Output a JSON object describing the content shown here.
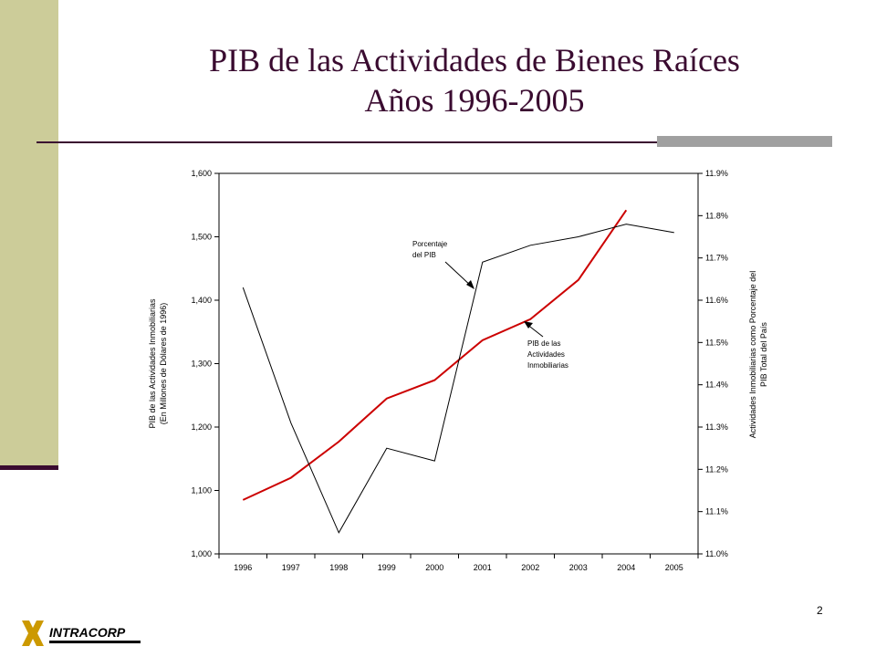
{
  "slide": {
    "title_line1": "PIB de las Actividades de Bienes Raíces",
    "title_line2": "Años 1996-2005",
    "page_number": "2",
    "logo_text": "INTRACORP",
    "colors": {
      "accent": "#3a0b30",
      "side_bar": "#cccc99",
      "grey_bar": "#a0a0a0"
    }
  },
  "chart_data": {
    "type": "line",
    "x": [
      "1996",
      "1997",
      "1998",
      "1999",
      "2000",
      "2001",
      "2002",
      "2003",
      "2004",
      "2005"
    ],
    "y_left": {
      "label_line1": "PIB de las Actividades Inmobiliarias",
      "label_line2": "(En Millones de Dólares de 1996)",
      "range": [
        1000,
        1600
      ],
      "ticks": [
        "1,000",
        "1,100",
        "1,200",
        "1,300",
        "1,400",
        "1,500",
        "1,600"
      ]
    },
    "y_right": {
      "label_line1": "Actividades Inmobiliarias como Porcentaje del",
      "label_line2": "PIB Total del País",
      "range": [
        11.0,
        11.9
      ],
      "ticks": [
        "11.0%",
        "11.1%",
        "11.2%",
        "11.3%",
        "11.4%",
        "11.5%",
        "11.6%",
        "11.7%",
        "11.8%",
        "11.9%"
      ]
    },
    "series": [
      {
        "axis": "left",
        "color": "#cc0000",
        "values": [
          1085,
          1120,
          1177,
          1245,
          1274,
          1337,
          1370,
          1432,
          1542,
          null
        ]
      },
      {
        "axis": "right",
        "color": "#000000",
        "values": [
          11.63,
          11.31,
          11.05,
          11.25,
          11.22,
          11.69,
          11.73,
          11.75,
          11.78,
          11.76
        ]
      }
    ],
    "annotations": [
      {
        "lines": [
          "Porcentaje",
          "del PIB"
        ]
      },
      {
        "lines": [
          "PIB de las",
          "Actividades",
          "Inmobiliarias"
        ]
      }
    ],
    "grid": false
  }
}
